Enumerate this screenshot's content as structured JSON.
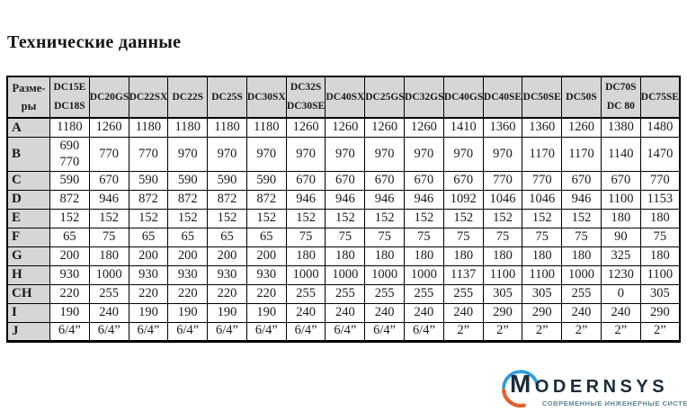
{
  "title": "Технические данные",
  "table": {
    "corner": "Разме-\nры",
    "columns": [
      "DC15E\nDC18S",
      "DC20GS",
      "DC22SX",
      "DC22S",
      "DC25S",
      "DC30SX",
      "DC32S\nDC30SE",
      "DC40SX",
      "DC25GS",
      "DC32GS",
      "DC40GS",
      "DC40SE",
      "DC50SE",
      "DC50S",
      "DC70S\nDC 80",
      "DC75SE"
    ],
    "rows": [
      {
        "label": "A",
        "values": [
          "1180",
          "1260",
          "1180",
          "1180",
          "1180",
          "1180",
          "1260",
          "1260",
          "1260",
          "1260",
          "1410",
          "1360",
          "1360",
          "1260",
          "1380",
          "1480"
        ]
      },
      {
        "label": "B",
        "values": [
          "690\n770",
          "770",
          "770",
          "970",
          "970",
          "970",
          "970",
          "970",
          "970",
          "970",
          "970",
          "970",
          "1170",
          "1170",
          "1140",
          "1470"
        ]
      },
      {
        "label": "C",
        "values": [
          "590",
          "670",
          "590",
          "590",
          "590",
          "590",
          "670",
          "670",
          "670",
          "670",
          "670",
          "770",
          "770",
          "670",
          "670",
          "770"
        ]
      },
      {
        "label": "D",
        "values": [
          "872",
          "946",
          "872",
          "872",
          "872",
          "872",
          "946",
          "946",
          "946",
          "946",
          "1092",
          "1046",
          "1046",
          "946",
          "1100",
          "1153"
        ]
      },
      {
        "label": "E",
        "values": [
          "152",
          "152",
          "152",
          "152",
          "152",
          "152",
          "152",
          "152",
          "152",
          "152",
          "152",
          "152",
          "152",
          "152",
          "180",
          "180"
        ]
      },
      {
        "label": "F",
        "values": [
          "65",
          "75",
          "65",
          "65",
          "65",
          "65",
          "75",
          "75",
          "75",
          "75",
          "75",
          "75",
          "75",
          "75",
          "90",
          "75"
        ]
      },
      {
        "label": "G",
        "values": [
          "200",
          "180",
          "200",
          "200",
          "200",
          "200",
          "180",
          "180",
          "180",
          "180",
          "180",
          "180",
          "180",
          "180",
          "325",
          "180"
        ]
      },
      {
        "label": "H",
        "values": [
          "930",
          "1000",
          "930",
          "930",
          "930",
          "930",
          "1000",
          "1000",
          "1000",
          "1000",
          "1137",
          "1100",
          "1100",
          "1000",
          "1230",
          "1100"
        ]
      },
      {
        "label": "CH",
        "values": [
          "220",
          "255",
          "220",
          "220",
          "220",
          "220",
          "255",
          "255",
          "255",
          "255",
          "255",
          "305",
          "305",
          "255",
          "0",
          "305"
        ]
      },
      {
        "label": "I",
        "values": [
          "190",
          "240",
          "190",
          "190",
          "190",
          "190",
          "240",
          "240",
          "240",
          "240",
          "240",
          "290",
          "290",
          "240",
          "240",
          "290"
        ]
      },
      {
        "label": "J",
        "values": [
          "6/4”",
          "6/4”",
          "6/4”",
          "6/4”",
          "6/4”",
          "6/4”",
          "6/4”",
          "6/4”",
          "6/4”",
          "6/4”",
          "2”",
          "2”",
          "2”",
          "2”",
          "2”",
          "2”"
        ]
      }
    ]
  },
  "logo": {
    "brand_initial": "M",
    "brand_rest": "ODERNSYS",
    "tagline": "СОВРЕМЕННЫЕ  ИНЖЕНЕРНЫЕ  СИСТЕМЫ",
    "colors": {
      "brand": "#1c2b3a",
      "arc_blue": "#2d9fd8",
      "arc_orange": "#e2622c",
      "tagline": "#5d8794",
      "header_bg": "#d6d6d6"
    }
  }
}
